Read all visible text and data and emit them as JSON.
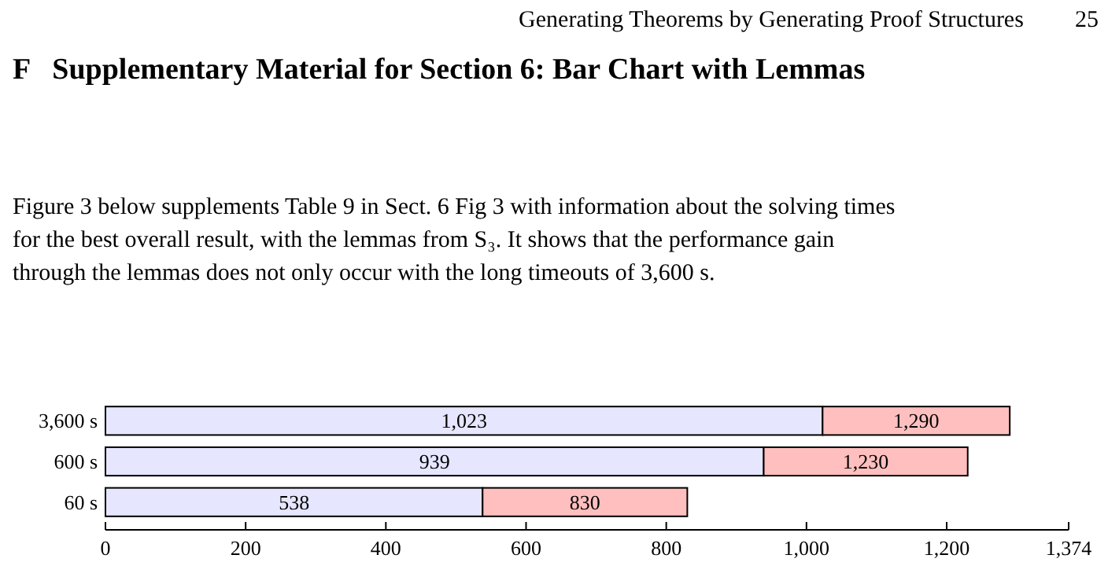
{
  "chart_data": {
    "type": "bar",
    "orientation": "horizontal",
    "stacked": true,
    "title": "F   Supplementary Material for Section 6: Bar Chart with Lemmas",
    "annotations": [
      "Generating Theorems by Generating Proof Structures",
      "25",
      "Figure 3 below supplements Table 9 in Sect. 6 Fig 3 with information about the solving times for the best overall result, with the lemmas from S₃. It shows that the performance gain through the lemmas does not only occur with the long timeouts of 3,600 s."
    ],
    "categories": [
      "3,600 s",
      "600 s",
      "60 s"
    ],
    "series": [
      {
        "color": "#e6e6ff",
        "values": [
          1023,
          939,
          538
        ],
        "value_labels": [
          "1,023",
          "939",
          "538"
        ]
      },
      {
        "color": "#ffbfbf",
        "values": [
          267,
          291,
          292
        ]
      }
    ],
    "totals": [
      "1,290",
      "1,230",
      "830"
    ],
    "xlim": [
      0,
      1374
    ],
    "xticks": [
      0,
      200,
      400,
      600,
      800,
      {
        "value": 1000,
        "label": "1,000"
      },
      {
        "value": 1200,
        "label": "1,200"
      },
      {
        "value": 1374,
        "label": "1,374"
      }
    ],
    "grid": false
  }
}
